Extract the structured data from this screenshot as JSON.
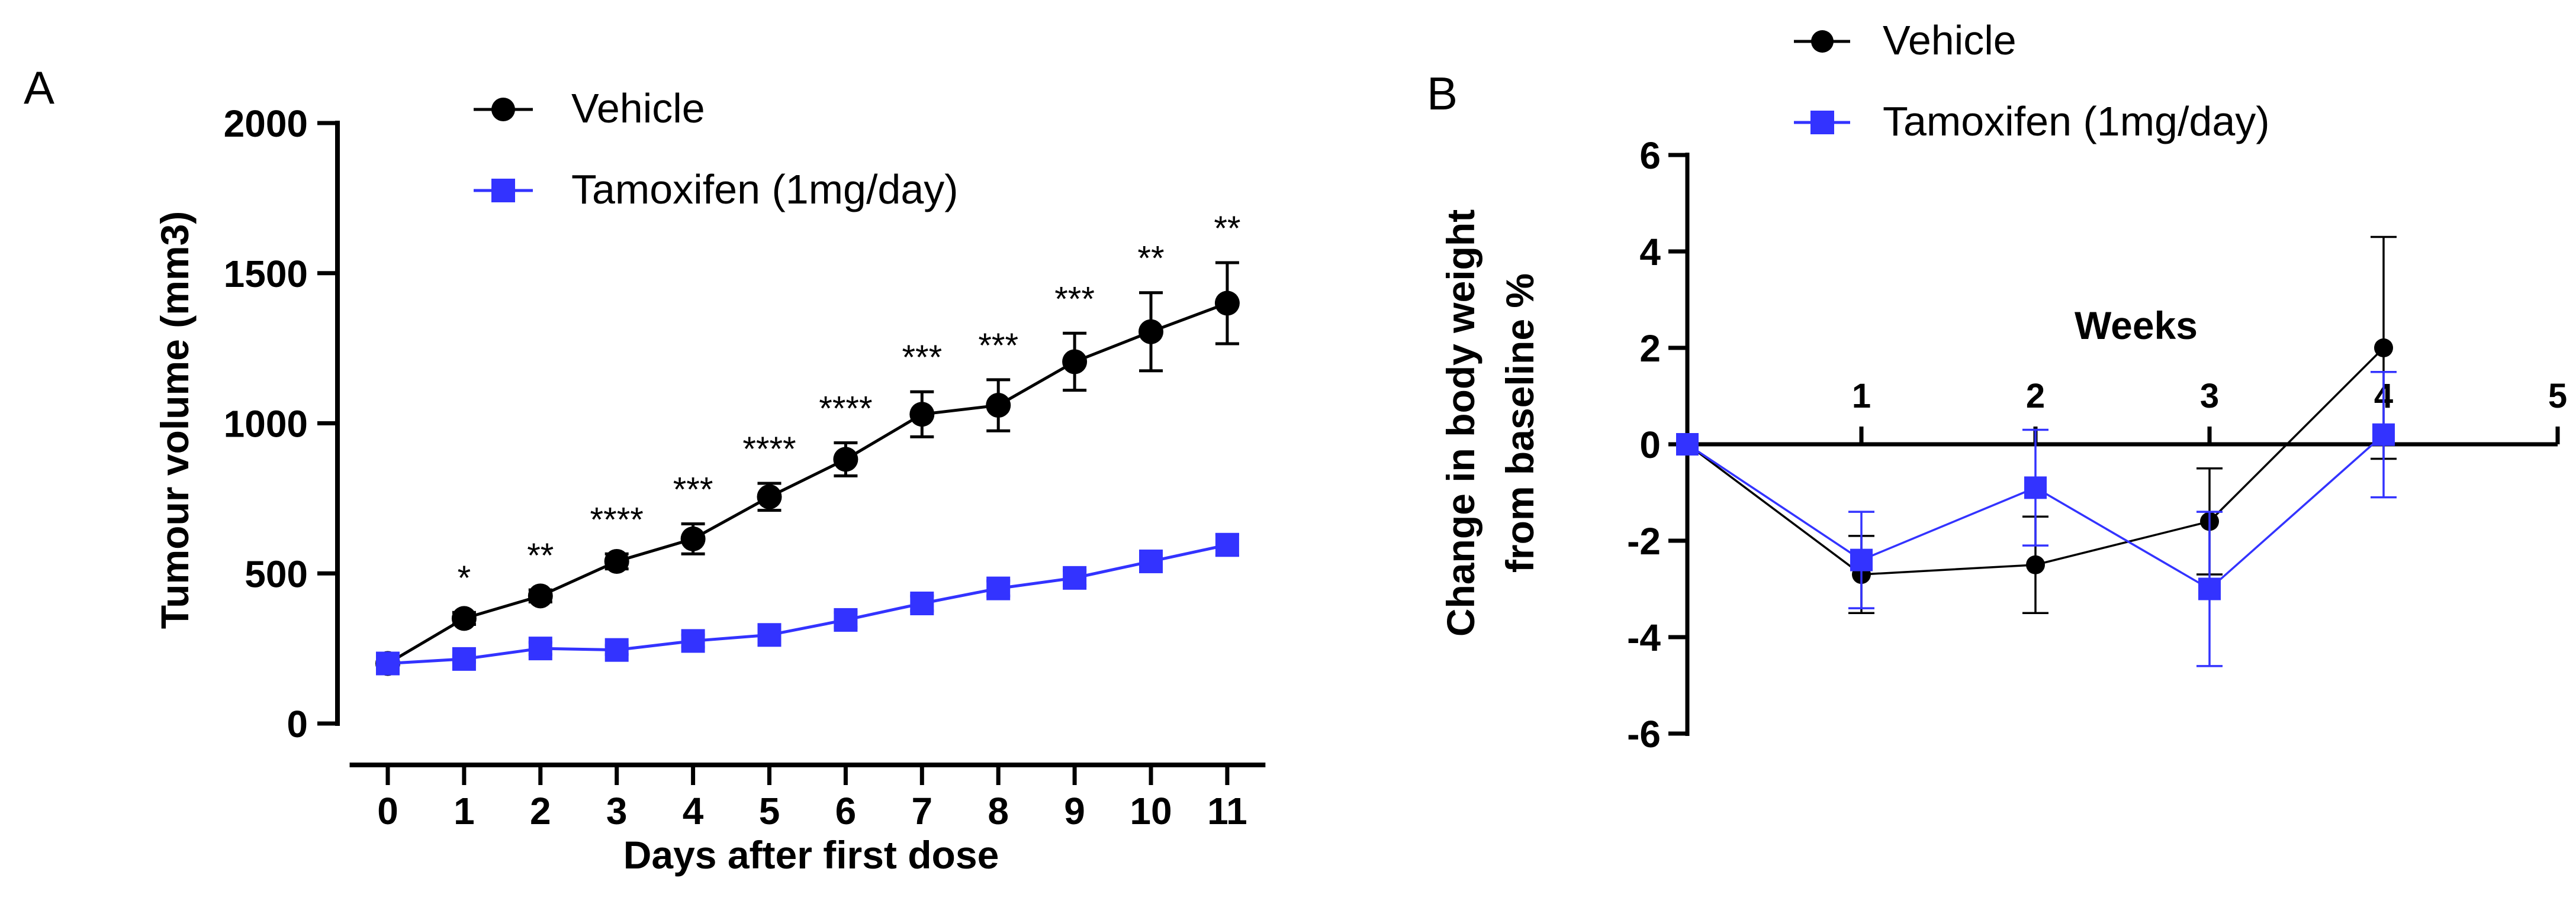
{
  "chart_data": [
    {
      "panel": "A",
      "type": "line",
      "title": "",
      "xlabel": "Days after first dose",
      "ylabel": "Tumour volume (mm3)",
      "x": [
        0,
        1,
        2,
        3,
        4,
        5,
        6,
        7,
        8,
        9,
        10,
        11
      ],
      "xlim": [
        -0.5,
        11.5
      ],
      "ylim": [
        0,
        2000
      ],
      "yticks": [
        0,
        500,
        1000,
        1500,
        2000
      ],
      "series": [
        {
          "name": "Vehicle",
          "color": "#000000",
          "marker": "circle",
          "values": [
            200,
            350,
            425,
            540,
            615,
            755,
            880,
            1030,
            1060,
            1205,
            1305,
            1400
          ],
          "errors": [
            10,
            20,
            20,
            25,
            50,
            45,
            55,
            75,
            85,
            95,
            130,
            135
          ]
        },
        {
          "name": "Tamoxifen (1mg/day)",
          "color": "#3333ff",
          "marker": "square",
          "values": [
            200,
            215,
            250,
            245,
            275,
            295,
            345,
            400,
            450,
            485,
            540,
            595
          ],
          "errors": [
            10,
            10,
            20,
            15,
            20,
            20,
            25,
            25,
            25,
            25,
            25,
            35
          ]
        }
      ],
      "annotations": [
        {
          "x": 1,
          "text": "*"
        },
        {
          "x": 2,
          "text": "**"
        },
        {
          "x": 3,
          "text": "****"
        },
        {
          "x": 4,
          "text": "***"
        },
        {
          "x": 5,
          "text": "****"
        },
        {
          "x": 6,
          "text": "****"
        },
        {
          "x": 7,
          "text": "***"
        },
        {
          "x": 8,
          "text": "***"
        },
        {
          "x": 9,
          "text": "***"
        },
        {
          "x": 10,
          "text": "**"
        },
        {
          "x": 11,
          "text": "**"
        }
      ],
      "legend": "top"
    },
    {
      "panel": "B",
      "type": "line",
      "title": "",
      "xlabel": "Weeks",
      "ylabel": "Change in body weight from baseline %",
      "ylabel_lines": [
        "Change in body weight",
        "from baseline %"
      ],
      "x": [
        0,
        1,
        2,
        3,
        4
      ],
      "xticks": [
        1,
        2,
        3,
        4,
        5
      ],
      "xlim": [
        0,
        5
      ],
      "ylim": [
        -6,
        6
      ],
      "yticks": [
        -6,
        -4,
        -2,
        0,
        2,
        4,
        6
      ],
      "series": [
        {
          "name": "Vehicle",
          "color": "#000000",
          "marker": "circle",
          "values": [
            0,
            -2.7,
            -2.5,
            -1.6,
            2.0
          ],
          "errors": [
            0,
            0.8,
            1.0,
            1.1,
            2.3
          ]
        },
        {
          "name": "Tamoxifen (1mg/day)",
          "color": "#3333ff",
          "marker": "square",
          "values": [
            0,
            -2.4,
            -0.9,
            -3.0,
            0.2
          ],
          "errors": [
            0,
            1.0,
            1.2,
            1.6,
            1.3
          ]
        }
      ],
      "legend": "top"
    }
  ]
}
